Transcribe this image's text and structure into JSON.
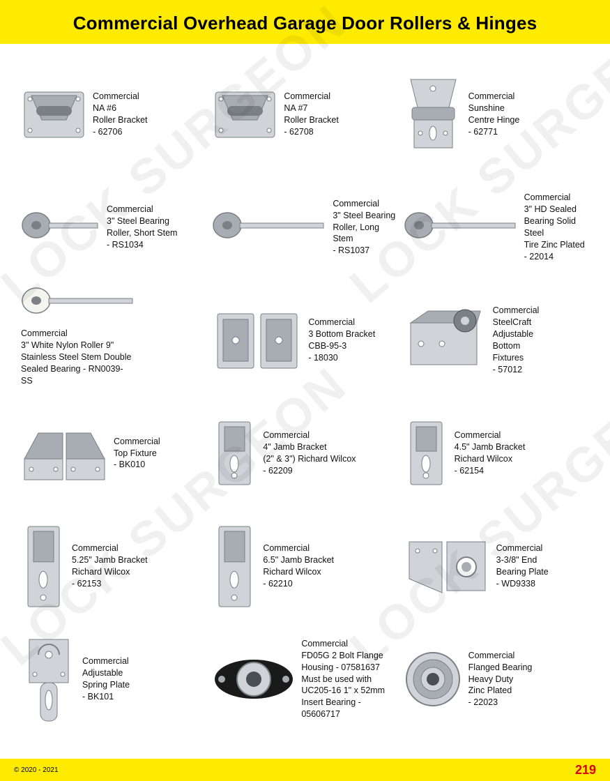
{
  "header": {
    "title": "Commercial Overhead Garage Door Rollers & Hinges"
  },
  "colors": {
    "accent": "#ffeb00",
    "metal_light": "#d0d4d8",
    "metal_mid": "#a8adb3",
    "metal_dark": "#7a8086",
    "steel_dark": "#4a4f54",
    "white_nylon": "#f5f5f0",
    "black": "#1a1a1a",
    "page_red": "#d00000"
  },
  "watermark": {
    "text": "LOCK SURGEON"
  },
  "products": [
    {
      "desc": "Commercial\nNA #6\nRoller Bracket\n- 62706",
      "svg": "bracket"
    },
    {
      "desc": "Commercial\nNA #7\nRoller Bracket\n- 62708",
      "svg": "bracket"
    },
    {
      "desc": "Commercial\nSunshine\nCentre Hinge\n- 62771",
      "svg": "centrehinge"
    },
    {
      "desc": "Commercial\n3\" Steel Bearing\nRoller, Short Stem\n- RS1034",
      "svg": "roller_short"
    },
    {
      "desc": "Commercial\n3\" Steel Bearing\nRoller, Long Stem\n- RS1037",
      "svg": "roller_long"
    },
    {
      "desc": "Commercial\n3\" HD Sealed\nBearing Solid Steel\nTire Zinc Plated\n- 22014",
      "svg": "roller_long"
    },
    {
      "desc": "Commercial\n3\" White Nylon Roller 9\"\nStainless Steel Stem Double\nSealed Bearing - RN0039-SS",
      "svg": "roller_white",
      "layout": "col"
    },
    {
      "desc": "Commercial\n3 Bottom Bracket\nCBB-95-3\n- 18030",
      "svg": "bottom_bracket"
    },
    {
      "desc": "Commercial\nSteelCraft\nAdjustable\nBottom\nFixtures\n- 57012",
      "svg": "adj_bottom"
    },
    {
      "desc": "Commercial\nTop Fixture\n- BK010",
      "svg": "top_fixture"
    },
    {
      "desc": "Commercial\n4\" Jamb Bracket\n(2\" & 3\") Richard Wilcox\n- 62209",
      "svg": "jamb"
    },
    {
      "desc": "Commercial\n4.5\" Jamb Bracket\nRichard Wilcox\n- 62154",
      "svg": "jamb"
    },
    {
      "desc": "Commercial\n5.25\" Jamb Bracket\nRichard Wilcox\n- 62153",
      "svg": "jamb_tall"
    },
    {
      "desc": "Commercial\n6.5\" Jamb Bracket\nRichard Wilcox\n- 62210",
      "svg": "jamb_tall"
    },
    {
      "desc": "Commercial\n3-3/8\" End\nBearing Plate\n- WD9338",
      "svg": "end_plate"
    },
    {
      "desc": "Commercial\nAdjustable\nSpring Plate\n- BK101",
      "svg": "spring_plate"
    },
    {
      "desc": "Commercial\nFD05G 2 Bolt Flange\nHousing - 07581637\nMust be used with\nUC205-16 1\" x 52mm\nInsert Bearing - 05606717",
      "svg": "flange"
    },
    {
      "desc": "Commercial\nFlanged Bearing\nHeavy Duty\nZinc Plated\n- 22023",
      "svg": "bearing"
    }
  ],
  "footer": {
    "copyright": "© 2020 - 2021",
    "page": "219"
  }
}
